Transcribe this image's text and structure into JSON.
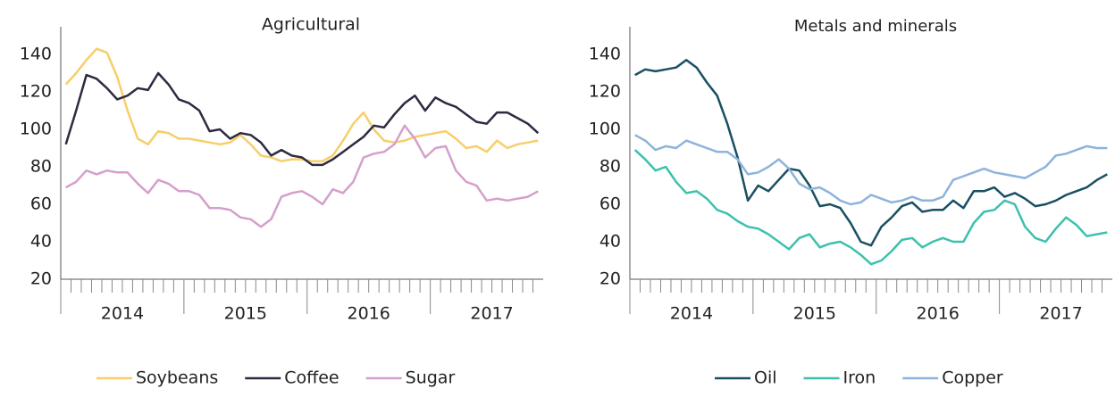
{
  "chart_data": [
    {
      "type": "line",
      "title": "Agricultural",
      "categories": [
        null,
        null,
        null,
        null,
        null,
        "2014",
        null,
        null,
        null,
        null,
        null,
        null,
        null,
        null,
        null,
        null,
        null,
        "2015",
        null,
        null,
        null,
        null,
        null,
        null,
        null,
        null,
        null,
        null,
        null,
        "2016",
        null,
        null,
        null,
        null,
        null,
        null,
        null,
        null,
        null,
        null,
        null,
        "2017",
        null,
        null,
        null,
        null,
        null
      ],
      "ylim": [
        20,
        140
      ],
      "yticks": [
        20,
        40,
        60,
        80,
        100,
        120,
        140
      ],
      "series": [
        {
          "name": "Soybeans",
          "color": "#f6cf6a",
          "values": [
            124,
            130,
            137,
            143,
            141,
            128,
            110,
            95,
            92,
            99,
            98,
            95,
            95,
            94,
            93,
            92,
            93,
            97,
            92,
            86,
            85,
            83,
            84,
            84,
            83,
            83,
            86,
            94,
            103,
            109,
            100,
            94,
            93,
            94,
            96,
            97,
            98,
            99,
            95,
            90,
            91,
            88,
            94,
            90,
            92,
            93,
            94
          ]
        },
        {
          "name": "Coffee",
          "color": "#2f2a40",
          "values": [
            92,
            110,
            129,
            127,
            122,
            116,
            118,
            122,
            121,
            130,
            124,
            116,
            114,
            110,
            99,
            100,
            95,
            98,
            97,
            93,
            86,
            89,
            86,
            85,
            81,
            81,
            84,
            88,
            92,
            96,
            102,
            101,
            108,
            114,
            118,
            110,
            117,
            114,
            112,
            108,
            104,
            103,
            109,
            109,
            106,
            103,
            98
          ]
        },
        {
          "name": "Sugar",
          "color": "#d59fcb",
          "values": [
            69,
            72,
            78,
            76,
            78,
            77,
            77,
            71,
            66,
            73,
            71,
            67,
            67,
            65,
            58,
            58,
            57,
            53,
            52,
            48,
            52,
            64,
            66,
            67,
            64,
            60,
            68,
            66,
            72,
            85,
            87,
            88,
            92,
            102,
            95,
            85,
            90,
            91,
            78,
            72,
            70,
            62,
            63,
            62,
            63,
            64,
            67
          ]
        }
      ]
    },
    {
      "type": "line",
      "title": "Metals and minerals",
      "categories": [
        null,
        null,
        null,
        null,
        null,
        "2014",
        null,
        null,
        null,
        null,
        null,
        null,
        null,
        null,
        null,
        null,
        null,
        "2015",
        null,
        null,
        null,
        null,
        null,
        null,
        null,
        null,
        null,
        null,
        null,
        "2016",
        null,
        null,
        null,
        null,
        null,
        null,
        null,
        null,
        null,
        null,
        null,
        "2017",
        null,
        null,
        null,
        null,
        null
      ],
      "ylim": [
        20,
        140
      ],
      "yticks": [
        20,
        40,
        60,
        80,
        100,
        120,
        140
      ],
      "series": [
        {
          "name": "Oil",
          "color": "#1a4f63",
          "values": [
            129,
            132,
            131,
            132,
            133,
            137,
            133,
            125,
            118,
            103,
            85,
            62,
            70,
            67,
            73,
            79,
            78,
            70,
            59,
            60,
            58,
            50,
            40,
            38,
            48,
            53,
            59,
            61,
            56,
            57,
            57,
            62,
            58,
            67,
            67,
            69,
            64,
            66,
            63,
            59,
            60,
            62,
            65,
            67,
            69,
            73,
            76
          ]
        },
        {
          "name": "Iron",
          "color": "#3cc1ad",
          "values": [
            89,
            84,
            78,
            80,
            72,
            66,
            67,
            63,
            57,
            55,
            51,
            48,
            47,
            44,
            40,
            36,
            42,
            44,
            37,
            39,
            40,
            37,
            33,
            28,
            30,
            35,
            41,
            42,
            37,
            40,
            42,
            40,
            40,
            50,
            56,
            57,
            62,
            60,
            48,
            42,
            40,
            47,
            53,
            49,
            43,
            44,
            45
          ]
        },
        {
          "name": "Copper",
          "color": "#8eb3dc",
          "values": [
            97,
            94,
            89,
            91,
            90,
            94,
            92,
            90,
            88,
            88,
            84,
            76,
            77,
            80,
            84,
            79,
            71,
            68,
            69,
            66,
            62,
            60,
            61,
            65,
            63,
            61,
            62,
            64,
            62,
            62,
            64,
            73,
            75,
            77,
            79,
            77,
            76,
            75,
            74,
            77,
            80,
            86,
            87,
            89,
            91,
            90,
            90
          ]
        }
      ]
    }
  ]
}
